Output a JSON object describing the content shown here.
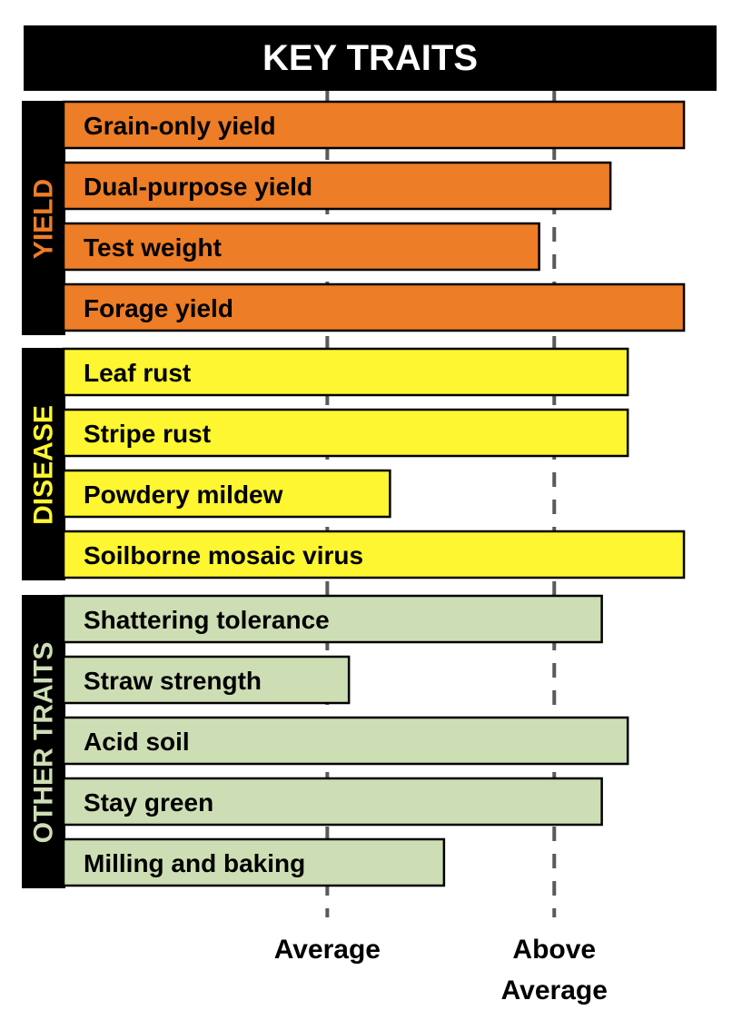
{
  "chart_data": {
    "type": "bar",
    "orientation": "horizontal",
    "title": "KEY TRAITS",
    "x_ticks": [
      "Average",
      "Above Average"
    ],
    "xlim": [
      0,
      3
    ],
    "groups": [
      {
        "name": "YIELD",
        "color": "#ed7d26",
        "label_color": "#ed7d26",
        "categories": [
          "Grain-only yield",
          "Dual-purpose yield",
          "Test weight",
          "Forage yield"
        ],
        "values": [
          2.87,
          2.53,
          2.2,
          2.87
        ]
      },
      {
        "name": "DISEASE",
        "color": "#fdf630",
        "label_color": "#fdf630",
        "categories": [
          "Leaf rust",
          "Stripe rust",
          "Powdery mildew",
          "Soilborne mosaic virus"
        ],
        "values": [
          2.61,
          2.61,
          1.51,
          2.87
        ]
      },
      {
        "name": "OTHER TRAITS",
        "color": "#cedeb4",
        "label_color": "#cedeb4",
        "categories": [
          "Shattering tolerance",
          "Straw strength",
          "Acid soil",
          "Stay green",
          "Milling and baking"
        ],
        "values": [
          2.49,
          1.32,
          2.61,
          2.49,
          1.76
        ]
      }
    ]
  }
}
